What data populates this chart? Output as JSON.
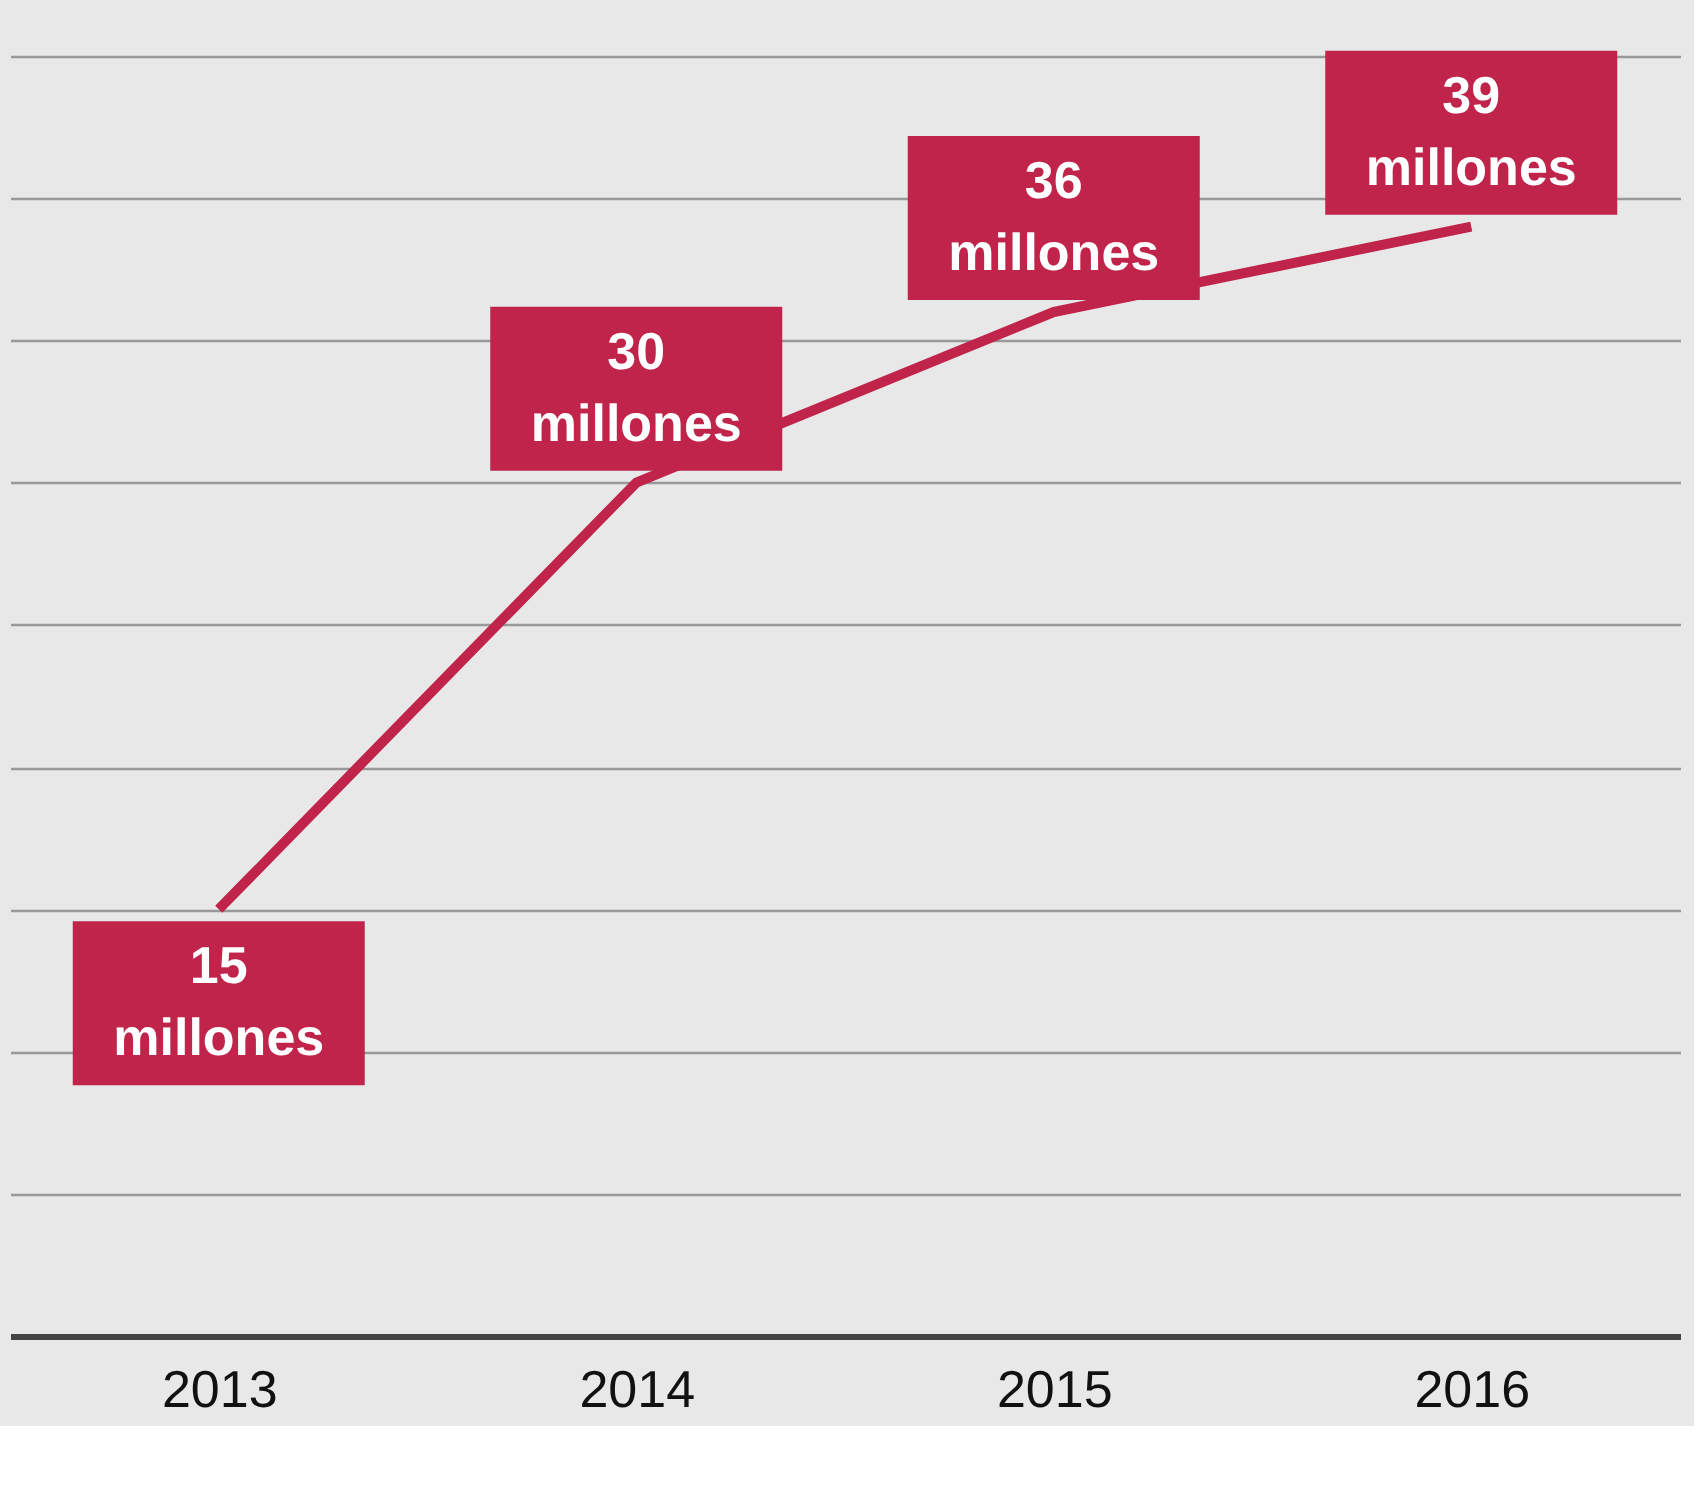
{
  "chart_data": {
    "type": "line",
    "categories": [
      "2013",
      "2014",
      "2015",
      "2016"
    ],
    "series": [
      {
        "color": "#c0244a",
        "values": [
          15,
          30,
          36,
          39
        ],
        "value_labels": [
          "15 millones",
          "30 millones",
          "36 millones",
          "39 millones"
        ]
      }
    ],
    "ylim": [
      0,
      45
    ],
    "yticks": [
      {
        "value": 0,
        "label": null
      },
      {
        "value": 5,
        "label": null
      },
      {
        "value": 10,
        "label": null
      },
      {
        "value": 15,
        "label": null
      },
      {
        "value": 20,
        "label": null
      },
      {
        "value": 25,
        "label": null
      },
      {
        "value": 30,
        "label": null
      },
      {
        "value": 35,
        "label": null
      },
      {
        "value": 40,
        "label": null
      },
      {
        "value": 45,
        "label": null
      }
    ],
    "grid": "y",
    "tick_labels": "x",
    "marker": "none",
    "line_style": "solid"
  }
}
